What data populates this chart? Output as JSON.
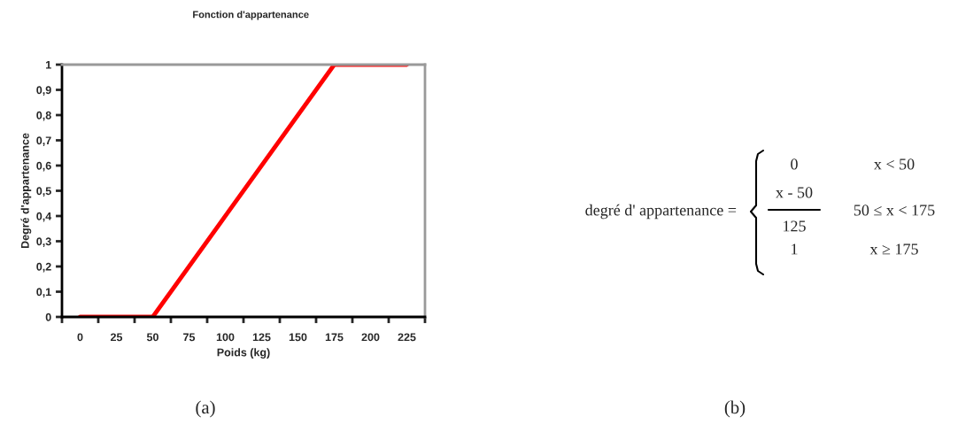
{
  "chart_data": {
    "type": "line",
    "title": "Fonction d'appartenance",
    "xlabel": "Poids (kg)",
    "ylabel": "Degré d'appartenance",
    "x": [
      0,
      50,
      175,
      225
    ],
    "series": [
      {
        "color": "#ff0000",
        "values": [
          0,
          0,
          1,
          1
        ]
      }
    ],
    "xlim": [
      -12.5,
      237.5
    ],
    "xticks": [
      {
        "value": -12.5,
        "label": null
      },
      0,
      {
        "value": 12.5,
        "label": null
      },
      25,
      {
        "value": 37.5,
        "label": null
      },
      50,
      {
        "value": 62.5,
        "label": null
      },
      75,
      {
        "value": 87.5,
        "label": null
      },
      100,
      {
        "value": 112.5,
        "label": null
      },
      125,
      {
        "value": 137.5,
        "label": null
      },
      150,
      {
        "value": 162.5,
        "label": null
      },
      175,
      {
        "value": 187.5,
        "label": null
      },
      200,
      {
        "value": 212.5,
        "label": null
      },
      225,
      {
        "value": 237.5,
        "label": null
      }
    ],
    "ylim": [
      0,
      1
    ],
    "yticks": [
      0,
      {
        "value": 0.1,
        "label": "0,1"
      },
      {
        "value": 0.2,
        "label": "0,2"
      },
      {
        "value": 0.3,
        "label": "0,3"
      },
      {
        "value": 0.4,
        "label": "0,4"
      },
      {
        "value": 0.5,
        "label": "0,5"
      },
      {
        "value": 0.6,
        "label": "0,6"
      },
      {
        "value": 0.7,
        "label": "0,7"
      },
      {
        "value": 0.8,
        "label": "0,8"
      },
      {
        "value": 0.9,
        "label": "0,9"
      },
      1
    ],
    "grid": false,
    "marker": "none",
    "line_style": "solid",
    "legend": false,
    "annotations": [
      "(a)",
      "(b)",
      "degré d' appartenance =",
      "0",
      "x < 50",
      "x - 50",
      "125",
      "50 ≤ x < 175",
      "1",
      "x ≥ 175"
    ]
  }
}
